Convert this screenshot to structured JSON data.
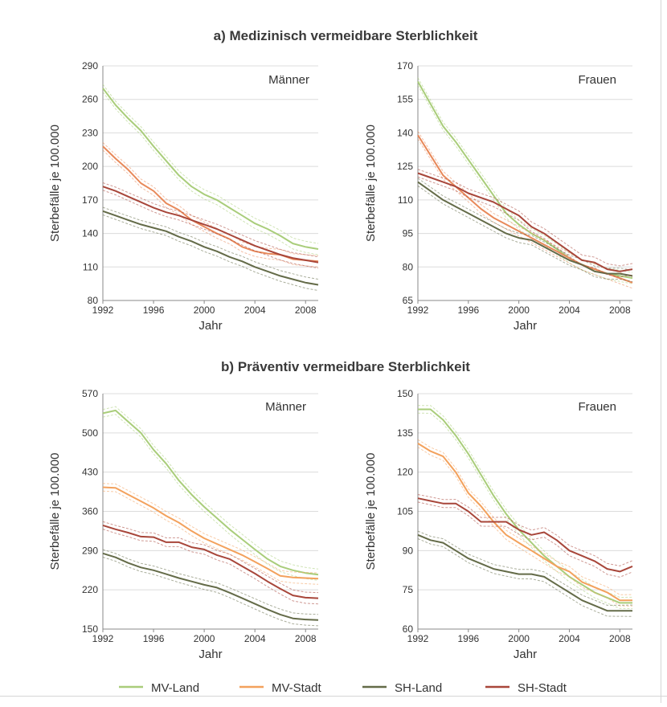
{
  "section_titles": {
    "a": "a) Medizinisch vermeidbare Sterblichkeit",
    "b": "b) Präventiv vermeidbare Sterblichkeit"
  },
  "legend": [
    {
      "name": "MV-Land",
      "color": "#a9cd7a"
    },
    {
      "name": "MV-Stadt",
      "color": "#f3a15c"
    },
    {
      "name": "SH-Land",
      "color": "#646b48"
    },
    {
      "name": "SH-Stadt",
      "color": "#a8463a"
    }
  ],
  "chart_data": [
    {
      "type": "line",
      "title": "Männer",
      "xlabel": "Jahr",
      "ylabel": "Sterbefälle je 100.000",
      "x": [
        1992,
        1993,
        1994,
        1995,
        1996,
        1997,
        1998,
        1999,
        2000,
        2001,
        2002,
        2003,
        2004,
        2005,
        2006,
        2007,
        2008,
        2009
      ],
      "xticks": [
        "1992",
        "1996",
        "2000",
        "2004",
        "2008"
      ],
      "yticks": [
        "80",
        "110",
        "140",
        "170",
        "200",
        "230",
        "260",
        "290"
      ],
      "ylim": [
        80,
        290
      ],
      "grid": true,
      "confidence_bands": true,
      "series": [
        {
          "name": "MV-Land",
          "color": "#a9cd7a",
          "values": [
            270,
            255,
            243,
            232,
            218,
            205,
            192,
            182,
            175,
            170,
            163,
            156,
            149,
            144,
            138,
            131,
            128,
            126
          ]
        },
        {
          "name": "MV-Stadt",
          "color": "#e8895a",
          "values": [
            218,
            207,
            197,
            185,
            178,
            167,
            161,
            152,
            146,
            140,
            135,
            128,
            124,
            122,
            121,
            117,
            116,
            115
          ]
        },
        {
          "name": "SH-Land",
          "color": "#646b48",
          "values": [
            160,
            156,
            152,
            148,
            145,
            142,
            137,
            133,
            128,
            124,
            119,
            115,
            110,
            106,
            102,
            99,
            96,
            94
          ]
        },
        {
          "name": "SH-Stadt",
          "color": "#a8463a",
          "values": [
            182,
            178,
            173,
            168,
            163,
            159,
            156,
            152,
            148,
            144,
            139,
            134,
            129,
            125,
            121,
            118,
            116,
            114
          ]
        }
      ]
    },
    {
      "type": "line",
      "title": "Frauen",
      "xlabel": "Jahr",
      "ylabel": "Sterbefälle je 100.000",
      "x": [
        1992,
        1993,
        1994,
        1995,
        1996,
        1997,
        1998,
        1999,
        2000,
        2001,
        2002,
        2003,
        2004,
        2005,
        2006,
        2007,
        2008,
        2009
      ],
      "xticks": [
        "1992",
        "1996",
        "2000",
        "2004",
        "2008"
      ],
      "yticks": [
        "65",
        "80",
        "95",
        "110",
        "125",
        "140",
        "155",
        "170"
      ],
      "ylim": [
        65,
        170
      ],
      "grid": true,
      "confidence_bands": true,
      "series": [
        {
          "name": "MV-Land",
          "color": "#a9cd7a",
          "values": [
            163,
            153,
            143,
            136,
            128,
            120,
            112,
            104,
            99,
            95,
            92,
            88,
            84,
            81,
            79,
            77,
            76,
            75
          ]
        },
        {
          "name": "MV-Stadt",
          "color": "#e8895a",
          "values": [
            139,
            130,
            121,
            116,
            111,
            106,
            102,
            99,
            96,
            93,
            90,
            87,
            84,
            81,
            79,
            77,
            75,
            73
          ]
        },
        {
          "name": "SH-Land",
          "color": "#646b48",
          "values": [
            118,
            114,
            110,
            107,
            104,
            101,
            98,
            95,
            93,
            92,
            89,
            86,
            83,
            81,
            78,
            77,
            77,
            76
          ]
        },
        {
          "name": "SH-Stadt",
          "color": "#a8463a",
          "values": [
            122,
            120,
            118,
            116,
            113,
            111,
            109,
            106,
            103,
            98,
            95,
            91,
            87,
            83,
            82,
            79,
            78,
            79
          ]
        }
      ]
    },
    {
      "type": "line",
      "title": "Männer",
      "xlabel": "Jahr",
      "ylabel": "Sterbefälle je 100.000",
      "x": [
        1992,
        1993,
        1994,
        1995,
        1996,
        1997,
        1998,
        1999,
        2000,
        2001,
        2002,
        2003,
        2004,
        2005,
        2006,
        2007,
        2008,
        2009
      ],
      "xticks": [
        "1992",
        "1996",
        "2000",
        "2004",
        "2008"
      ],
      "yticks": [
        "150",
        "220",
        "290",
        "360",
        "430",
        "500",
        "570"
      ],
      "ylim": [
        150,
        570
      ],
      "grid": true,
      "confidence_bands": true,
      "series": [
        {
          "name": "MV-Land",
          "color": "#a9cd7a",
          "values": [
            535,
            540,
            520,
            500,
            470,
            445,
            415,
            390,
            368,
            348,
            328,
            310,
            292,
            275,
            262,
            255,
            250,
            247
          ]
        },
        {
          "name": "MV-Stadt",
          "color": "#f3a15c",
          "values": [
            403,
            402,
            390,
            378,
            366,
            352,
            340,
            325,
            312,
            302,
            292,
            282,
            270,
            258,
            245,
            242,
            241,
            240
          ]
        },
        {
          "name": "SH-Land",
          "color": "#646b48",
          "values": [
            285,
            278,
            268,
            260,
            255,
            248,
            241,
            235,
            229,
            224,
            215,
            205,
            195,
            185,
            176,
            169,
            167,
            166
          ]
        },
        {
          "name": "SH-Stadt",
          "color": "#a8463a",
          "values": [
            335,
            328,
            322,
            315,
            314,
            305,
            305,
            296,
            292,
            282,
            275,
            262,
            249,
            235,
            222,
            210,
            206,
            205
          ]
        }
      ]
    },
    {
      "type": "line",
      "title": "Frauen",
      "xlabel": "Jahr",
      "ylabel": "Sterbefälle je 100.000",
      "x": [
        1992,
        1993,
        1994,
        1995,
        1996,
        1997,
        1998,
        1999,
        2000,
        2001,
        2002,
        2003,
        2004,
        2005,
        2006,
        2007,
        2008,
        2009
      ],
      "xticks": [
        "1992",
        "1996",
        "2000",
        "2004",
        "2008"
      ],
      "yticks": [
        "60",
        "75",
        "90",
        "105",
        "120",
        "135",
        "150"
      ],
      "ylim": [
        60,
        150
      ],
      "grid": true,
      "confidence_bands": true,
      "series": [
        {
          "name": "MV-Land",
          "color": "#a9cd7a",
          "values": [
            144,
            144,
            140,
            134,
            127,
            119,
            111,
            104,
            98,
            93,
            88,
            84,
            80,
            77,
            74,
            72,
            70,
            70
          ]
        },
        {
          "name": "MV-Stadt",
          "color": "#f3a15c",
          "values": [
            131,
            128,
            126,
            120,
            112,
            107,
            101,
            96,
            93,
            90,
            87,
            84,
            82,
            78,
            76,
            74,
            71,
            71
          ]
        },
        {
          "name": "SH-Land",
          "color": "#646b48",
          "values": [
            96,
            94,
            93,
            90,
            87,
            85,
            83,
            82,
            81,
            81,
            80,
            77,
            74,
            71,
            69,
            67,
            67,
            67
          ]
        },
        {
          "name": "SH-Stadt",
          "color": "#a8463a",
          "values": [
            110,
            109,
            108,
            108,
            105,
            101,
            101,
            101,
            98,
            96,
            97,
            94,
            90,
            88,
            86,
            83,
            82,
            84
          ]
        }
      ]
    }
  ]
}
